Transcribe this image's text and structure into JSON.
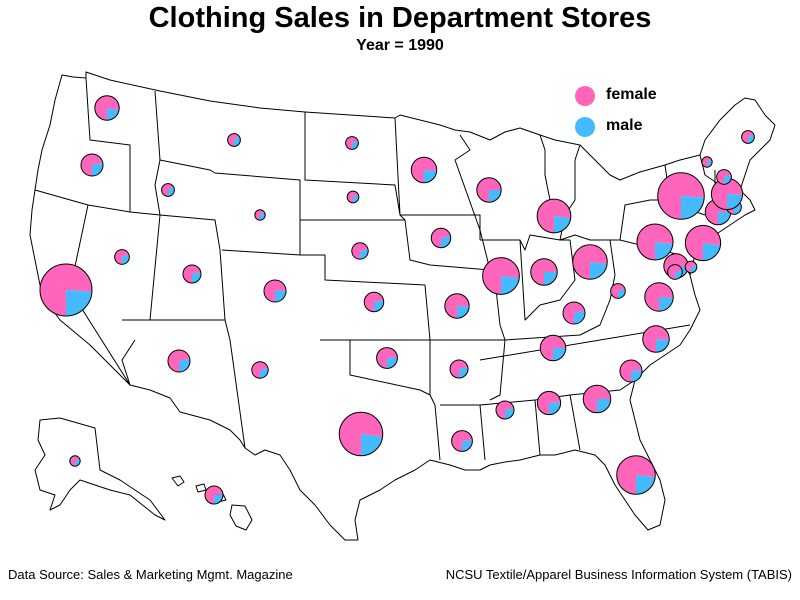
{
  "title": "Clothing Sales in Department Stores",
  "subtitle": "Year = 1990",
  "legend": [
    {
      "label": "female",
      "color": "#ff66bb"
    },
    {
      "label": "male",
      "color": "#44bbff"
    }
  ],
  "footer": {
    "left": "Data Source: Sales & Marketing Mgmt. Magazine",
    "right": "NCSU Textile/Apparel Business Information System (TABIS)"
  },
  "chart_data": {
    "type": "pie-map",
    "region": "United States",
    "categories": [
      "female",
      "male"
    ],
    "size_meaning": "relative total clothing sales (visual estimate)",
    "states": [
      {
        "state": "WA",
        "total": 22,
        "female": 0.78
      },
      {
        "state": "OR",
        "total": 18,
        "female": 0.72
      },
      {
        "state": "CA",
        "total": 100,
        "female": 0.76
      },
      {
        "state": "NV",
        "total": 8,
        "female": 0.7
      },
      {
        "state": "ID",
        "total": 6,
        "female": 0.65
      },
      {
        "state": "MT",
        "total": 6,
        "female": 0.65
      },
      {
        "state": "WY",
        "total": 4,
        "female": 0.65
      },
      {
        "state": "UT",
        "total": 12,
        "female": 0.72
      },
      {
        "state": "CO",
        "total": 18,
        "female": 0.74
      },
      {
        "state": "AZ",
        "total": 18,
        "female": 0.72
      },
      {
        "state": "NM",
        "total": 10,
        "female": 0.72
      },
      {
        "state": "ND",
        "total": 6,
        "female": 0.7
      },
      {
        "state": "SD",
        "total": 5,
        "female": 0.7
      },
      {
        "state": "NE",
        "total": 10,
        "female": 0.72
      },
      {
        "state": "KS",
        "total": 14,
        "female": 0.72
      },
      {
        "state": "OK",
        "total": 16,
        "female": 0.74
      },
      {
        "state": "TX",
        "total": 70,
        "female": 0.77
      },
      {
        "state": "MN",
        "total": 24,
        "female": 0.76
      },
      {
        "state": "IA",
        "total": 14,
        "female": 0.72
      },
      {
        "state": "MO",
        "total": 22,
        "female": 0.76
      },
      {
        "state": "AR",
        "total": 12,
        "female": 0.72
      },
      {
        "state": "LA",
        "total": 16,
        "female": 0.74
      },
      {
        "state": "WI",
        "total": 22,
        "female": 0.75
      },
      {
        "state": "IL",
        "total": 50,
        "female": 0.77
      },
      {
        "state": "MI",
        "total": 42,
        "female": 0.77
      },
      {
        "state": "IN",
        "total": 26,
        "female": 0.75
      },
      {
        "state": "OH",
        "total": 44,
        "female": 0.77
      },
      {
        "state": "KY",
        "total": 18,
        "female": 0.72
      },
      {
        "state": "TN",
        "total": 24,
        "female": 0.75
      },
      {
        "state": "MS",
        "total": 12,
        "female": 0.72
      },
      {
        "state": "AL",
        "total": 20,
        "female": 0.74
      },
      {
        "state": "GA",
        "total": 28,
        "female": 0.75
      },
      {
        "state": "FL",
        "total": 55,
        "female": 0.77
      },
      {
        "state": "SC",
        "total": 18,
        "female": 0.74
      },
      {
        "state": "NC",
        "total": 26,
        "female": 0.76
      },
      {
        "state": "VA",
        "total": 30,
        "female": 0.76
      },
      {
        "state": "WV",
        "total": 8,
        "female": 0.7
      },
      {
        "state": "MD",
        "total": 22,
        "female": 0.76
      },
      {
        "state": "DE",
        "total": 5,
        "female": 0.7
      },
      {
        "state": "DC",
        "total": 8,
        "female": 0.72
      },
      {
        "state": "PA",
        "total": 48,
        "female": 0.77
      },
      {
        "state": "NJ",
        "total": 46,
        "female": 0.77
      },
      {
        "state": "NY",
        "total": 80,
        "female": 0.76
      },
      {
        "state": "CT",
        "total": 24,
        "female": 0.75
      },
      {
        "state": "RI",
        "total": 8,
        "female": 0.7
      },
      {
        "state": "MA",
        "total": 36,
        "female": 0.76
      },
      {
        "state": "VT",
        "total": 4,
        "female": 0.7
      },
      {
        "state": "NH",
        "total": 8,
        "female": 0.7
      },
      {
        "state": "ME",
        "total": 6,
        "female": 0.7
      },
      {
        "state": "AK",
        "total": 4,
        "female": 0.7
      },
      {
        "state": "HI",
        "total": 12,
        "female": 0.74
      }
    ]
  }
}
